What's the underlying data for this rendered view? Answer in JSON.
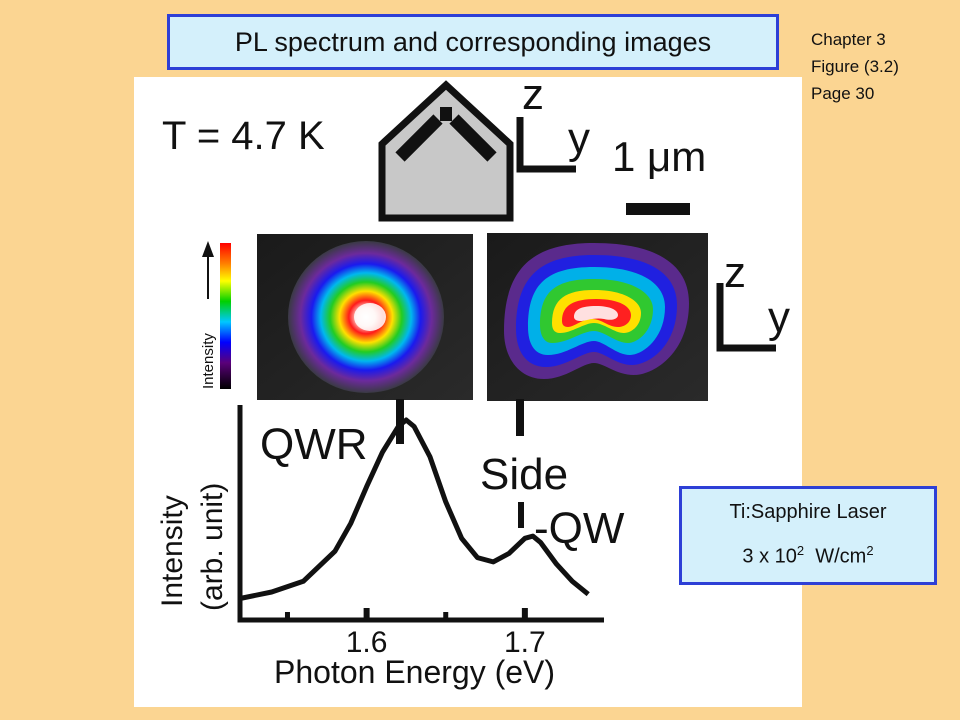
{
  "slide": {
    "title": "PL spectrum and corresponding images",
    "reference": {
      "chapter": "Chapter 3",
      "figure": "Figure (3.2)",
      "page": "Page 30"
    }
  },
  "figure": {
    "temperature_label": "T = 4.7 K",
    "scale_bar_label": "1 μm",
    "axis_z_label": "z",
    "axis_y_label": "y",
    "colorbar_label": "Intensity",
    "peak_label_qwr": "QWR",
    "peak_label_side_line1": "Side",
    "peak_label_side_line2": "-QW"
  },
  "laser": {
    "line1": "Ti:Sapphire Laser",
    "value": "3 x 10",
    "exponent": "2",
    "unit": "W/cm",
    "unit_exponent": "2"
  },
  "chart_data": {
    "type": "line",
    "xlabel": "Photon Energy (eV)",
    "ylabel": "Intensity (arb. unit)",
    "xticks": [
      "1.6",
      "1.7"
    ],
    "xlim": [
      1.52,
      1.75
    ],
    "ylim": [
      0,
      1.0
    ],
    "series": [
      {
        "x": [
          1.52,
          1.54,
          1.56,
          1.58,
          1.59,
          1.6,
          1.61,
          1.62,
          1.625,
          1.63,
          1.64,
          1.65,
          1.66,
          1.67,
          1.68,
          1.69,
          1.7,
          1.705,
          1.71,
          1.72,
          1.73,
          1.74
        ],
        "y": [
          0.1,
          0.13,
          0.18,
          0.32,
          0.45,
          0.62,
          0.78,
          0.9,
          0.93,
          0.9,
          0.76,
          0.55,
          0.38,
          0.29,
          0.27,
          0.31,
          0.38,
          0.39,
          0.36,
          0.26,
          0.18,
          0.12
        ]
      }
    ]
  }
}
